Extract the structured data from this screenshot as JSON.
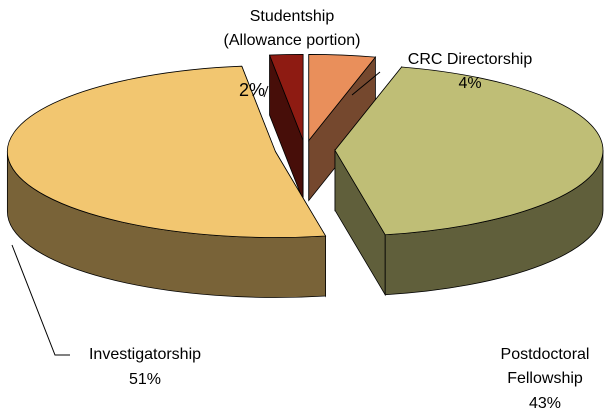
{
  "chart_data": {
    "type": "pie3d",
    "categories": [
      "CRC Directorship",
      "Postdoctoral\nFellowship",
      "Investigatorship",
      "Studentship\n(Allowance portion)"
    ],
    "values": [
      4,
      43,
      51,
      2
    ],
    "value_labels": [
      "4%",
      "43%",
      "51%",
      "2%"
    ],
    "colors": [
      "#E98F5B",
      "#BFBE76",
      "#F2C670",
      "#8E1B12"
    ]
  }
}
